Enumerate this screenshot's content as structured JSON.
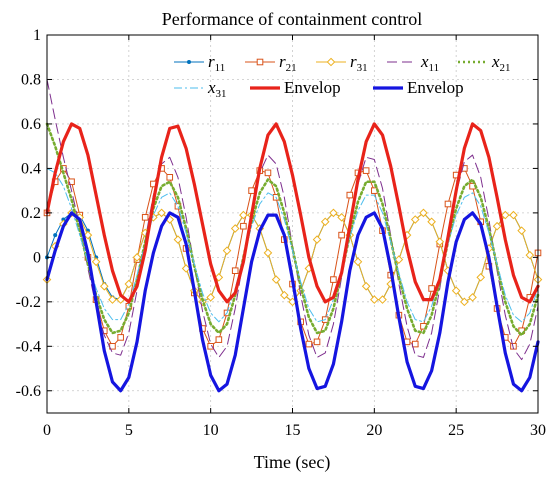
{
  "chart_data": {
    "type": "line",
    "title": "Performance of containment control",
    "xlabel": "Time (sec)",
    "ylabel": "",
    "xlim": [
      0,
      30
    ],
    "ylim": [
      -0.7,
      1
    ],
    "grid": true,
    "legend_position": "top-right",
    "x_ticks": [
      0,
      5,
      10,
      15,
      20,
      25,
      30
    ],
    "x_tick_labels": [
      "0",
      "5",
      "10",
      "15",
      "20",
      "25",
      "30"
    ],
    "y_ticks": [
      -0.6,
      -0.4,
      -0.2,
      0,
      0.2,
      0.4,
      0.6,
      0.8,
      1
    ],
    "y_tick_labels": [
      "-0.6",
      "-0.4",
      "-0.2",
      "0",
      "0.2",
      "0.4",
      "0.6",
      "0.8",
      "1"
    ],
    "x": [
      0,
      0.5,
      1,
      1.5,
      2,
      2.5,
      3,
      3.5,
      4,
      4.5,
      5,
      5.5,
      6,
      6.5,
      7,
      7.5,
      8,
      8.5,
      9,
      9.5,
      10,
      10.5,
      11,
      11.5,
      12,
      12.5,
      13,
      13.5,
      14,
      14.5,
      15,
      15.5,
      16,
      16.5,
      17,
      17.5,
      18,
      18.5,
      19,
      19.5,
      20,
      20.5,
      21,
      21.5,
      22,
      22.5,
      23,
      23.5,
      24,
      24.5,
      25,
      25.5,
      26,
      26.5,
      27,
      27.5,
      28,
      28.5,
      29,
      29.5,
      30
    ],
    "series": [
      {
        "name": "r",
        "subscript": "11",
        "color": "#0072BD",
        "dash": "solid",
        "width": 1,
        "marker": "dot",
        "values": [
          0.0,
          0.1,
          0.17,
          0.2,
          0.19,
          0.12,
          0.0,
          -0.12,
          -0.18,
          -0.19,
          -0.12,
          0.0,
          0.11,
          0.18,
          0.2,
          0.17,
          0.08,
          -0.05,
          -0.15,
          -0.2,
          -0.18,
          -0.09,
          0.03,
          0.13,
          0.19,
          0.19,
          0.13,
          0.02,
          -0.1,
          -0.17,
          -0.2,
          -0.15,
          -0.05,
          0.08,
          0.16,
          0.2,
          0.18,
          0.1,
          -0.02,
          -0.13,
          -0.19,
          -0.19,
          -0.12,
          -0.01,
          0.1,
          0.17,
          0.2,
          0.16,
          0.07,
          -0.06,
          -0.15,
          -0.2,
          -0.18,
          -0.09,
          0.04,
          0.14,
          0.19,
          0.19,
          0.12,
          0.01,
          -0.1
        ]
      },
      {
        "name": "r",
        "subscript": "21",
        "color": "#D95319",
        "dash": "solid",
        "width": 1,
        "marker": "square",
        "values": [
          0.2,
          0.34,
          0.4,
          0.34,
          0.19,
          0.0,
          -0.19,
          -0.33,
          -0.4,
          -0.36,
          -0.22,
          -0.01,
          0.18,
          0.33,
          0.4,
          0.36,
          0.23,
          0.04,
          -0.16,
          -0.32,
          -0.4,
          -0.37,
          -0.25,
          -0.06,
          0.14,
          0.3,
          0.39,
          0.38,
          0.27,
          0.08,
          -0.12,
          -0.29,
          -0.39,
          -0.38,
          -0.28,
          -0.1,
          0.1,
          0.28,
          0.38,
          0.39,
          0.3,
          0.12,
          -0.08,
          -0.26,
          -0.38,
          -0.39,
          -0.31,
          -0.14,
          0.06,
          0.24,
          0.37,
          0.4,
          0.32,
          0.16,
          -0.04,
          -0.23,
          -0.36,
          -0.4,
          -0.33,
          -0.18,
          0.02
        ]
      },
      {
        "name": "r",
        "subscript": "31",
        "color": "#EDB120",
        "dash": "solid",
        "width": 1,
        "marker": "diamond",
        "values": [
          -0.1,
          0.05,
          0.15,
          0.2,
          0.18,
          0.1,
          -0.02,
          -0.13,
          -0.19,
          -0.19,
          -0.12,
          0.0,
          0.11,
          0.18,
          0.2,
          0.17,
          0.08,
          -0.05,
          -0.15,
          -0.2,
          -0.18,
          -0.09,
          0.03,
          0.13,
          0.19,
          0.19,
          0.13,
          0.02,
          -0.1,
          -0.17,
          -0.2,
          -0.15,
          -0.05,
          0.08,
          0.16,
          0.2,
          0.18,
          0.1,
          -0.02,
          -0.13,
          -0.19,
          -0.19,
          -0.12,
          -0.01,
          0.1,
          0.17,
          0.2,
          0.16,
          0.07,
          -0.06,
          -0.15,
          -0.2,
          -0.18,
          -0.09,
          0.04,
          0.14,
          0.19,
          0.19,
          0.12,
          0.01,
          -0.1
        ]
      },
      {
        "name": "x",
        "subscript": "11",
        "color": "#7E2F8E",
        "dash": "long-dash",
        "width": 1,
        "marker": "none",
        "values": [
          0.8,
          0.62,
          0.45,
          0.3,
          0.14,
          -0.05,
          -0.22,
          -0.35,
          -0.43,
          -0.44,
          -0.34,
          -0.15,
          0.08,
          0.28,
          0.42,
          0.45,
          0.36,
          0.18,
          -0.04,
          -0.24,
          -0.39,
          -0.45,
          -0.4,
          -0.23,
          -0.01,
          0.21,
          0.38,
          0.46,
          0.42,
          0.27,
          0.05,
          -0.17,
          -0.35,
          -0.45,
          -0.43,
          -0.3,
          -0.09,
          0.14,
          0.33,
          0.45,
          0.44,
          0.31,
          0.1,
          -0.12,
          -0.31,
          -0.44,
          -0.45,
          -0.34,
          -0.14,
          0.09,
          0.29,
          0.43,
          0.46,
          0.36,
          0.17,
          -0.06,
          -0.26,
          -0.41,
          -0.46,
          -0.39,
          -0.22
        ]
      },
      {
        "name": "x",
        "subscript": "21",
        "color": "#77AC30",
        "dash": "dotted",
        "width": 2.6,
        "marker": "none",
        "values": [
          0.6,
          0.5,
          0.38,
          0.26,
          0.12,
          -0.03,
          -0.17,
          -0.28,
          -0.34,
          -0.33,
          -0.25,
          -0.1,
          0.07,
          0.22,
          0.32,
          0.34,
          0.27,
          0.13,
          -0.04,
          -0.19,
          -0.3,
          -0.34,
          -0.3,
          -0.17,
          0.0,
          0.16,
          0.29,
          0.35,
          0.32,
          0.2,
          0.04,
          -0.13,
          -0.27,
          -0.34,
          -0.33,
          -0.23,
          -0.07,
          0.1,
          0.25,
          0.34,
          0.34,
          0.24,
          0.08,
          -0.09,
          -0.23,
          -0.33,
          -0.34,
          -0.26,
          -0.11,
          0.07,
          0.22,
          0.32,
          0.35,
          0.27,
          0.13,
          -0.04,
          -0.2,
          -0.31,
          -0.35,
          -0.3,
          -0.17
        ]
      },
      {
        "name": "x",
        "subscript": "31",
        "color": "#4DBEEE",
        "dash": "dash-dot",
        "width": 1,
        "marker": "none",
        "values": [
          0.4,
          0.38,
          0.32,
          0.22,
          0.1,
          -0.02,
          -0.14,
          -0.23,
          -0.28,
          -0.28,
          -0.21,
          -0.08,
          0.06,
          0.19,
          0.27,
          0.29,
          0.23,
          0.11,
          -0.03,
          -0.16,
          -0.25,
          -0.29,
          -0.25,
          -0.14,
          0.0,
          0.14,
          0.24,
          0.29,
          0.27,
          0.17,
          0.03,
          -0.11,
          -0.23,
          -0.29,
          -0.28,
          -0.19,
          -0.05,
          0.09,
          0.21,
          0.28,
          0.28,
          0.2,
          0.07,
          -0.07,
          -0.2,
          -0.28,
          -0.29,
          -0.22,
          -0.09,
          0.06,
          0.19,
          0.27,
          0.29,
          0.23,
          0.11,
          -0.03,
          -0.17,
          -0.26,
          -0.29,
          -0.25,
          -0.14
        ]
      },
      {
        "name": "Envelop",
        "subscript": "",
        "color": "#E8231A",
        "dash": "solid",
        "width": 3.2,
        "marker": "none",
        "values": [
          0.2,
          0.38,
          0.52,
          0.6,
          0.58,
          0.46,
          0.28,
          0.1,
          -0.06,
          -0.17,
          -0.2,
          -0.13,
          0.03,
          0.25,
          0.45,
          0.58,
          0.59,
          0.49,
          0.33,
          0.15,
          -0.03,
          -0.15,
          -0.2,
          -0.16,
          -0.02,
          0.19,
          0.4,
          0.55,
          0.6,
          0.52,
          0.37,
          0.19,
          0.0,
          -0.13,
          -0.2,
          -0.18,
          -0.07,
          0.14,
          0.35,
          0.52,
          0.6,
          0.55,
          0.41,
          0.23,
          0.04,
          -0.11,
          -0.19,
          -0.19,
          -0.1,
          0.09,
          0.3,
          0.49,
          0.6,
          0.57,
          0.45,
          0.27,
          0.08,
          -0.08,
          -0.18,
          -0.2,
          -0.13
        ]
      },
      {
        "name": "Envelop",
        "subscript": "",
        "color": "#1515E0",
        "dash": "solid",
        "width": 3.2,
        "marker": "none",
        "values": [
          -0.1,
          0.03,
          0.14,
          0.2,
          0.17,
          0.02,
          -0.2,
          -0.42,
          -0.56,
          -0.6,
          -0.54,
          -0.38,
          -0.15,
          0.02,
          0.14,
          0.2,
          0.18,
          0.06,
          -0.15,
          -0.37,
          -0.53,
          -0.6,
          -0.57,
          -0.44,
          -0.23,
          -0.02,
          0.12,
          0.19,
          0.19,
          0.1,
          -0.1,
          -0.32,
          -0.5,
          -0.59,
          -0.58,
          -0.48,
          -0.29,
          -0.06,
          0.1,
          0.18,
          0.2,
          0.13,
          -0.05,
          -0.27,
          -0.47,
          -0.58,
          -0.59,
          -0.51,
          -0.34,
          -0.11,
          0.07,
          0.17,
          0.2,
          0.15,
          0.0,
          -0.22,
          -0.43,
          -0.57,
          -0.6,
          -0.54,
          -0.38
        ]
      }
    ]
  }
}
